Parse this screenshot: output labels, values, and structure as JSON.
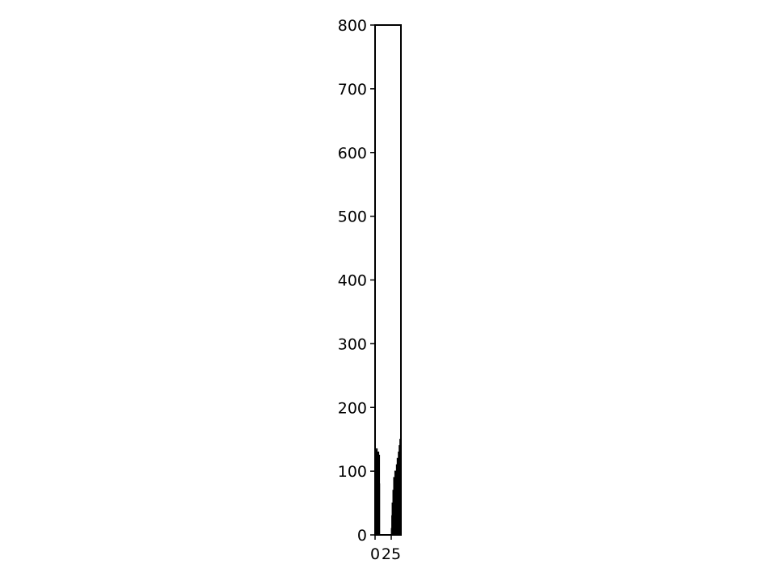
{
  "chart_data": {
    "type": "bar",
    "title": "",
    "xlabel": "",
    "ylabel": "",
    "ylim": [
      0,
      800
    ],
    "xlim": [
      0,
      40
    ],
    "yticks": [
      0,
      100,
      200,
      300,
      400,
      500,
      600,
      700,
      800
    ],
    "xtick_labels": [
      "0",
      "25"
    ],
    "grid": false,
    "legend": "none",
    "bar_color": "#add8e6",
    "edge_color": "#000000",
    "bars": [
      {
        "x": 0.5,
        "y": 20
      },
      {
        "x": 0.7,
        "y": 40
      },
      {
        "x": 0.9,
        "y": 60
      },
      {
        "x": 1.1,
        "y": 15
      },
      {
        "x": 1.3,
        "y": 80
      },
      {
        "x": 1.5,
        "y": 35
      },
      {
        "x": 1.7,
        "y": 100
      },
      {
        "x": 1.9,
        "y": 55
      },
      {
        "x": 2.1,
        "y": 120
      },
      {
        "x": 2.3,
        "y": 30
      },
      {
        "x": 2.5,
        "y": 135
      },
      {
        "x": 2.7,
        "y": 75
      },
      {
        "x": 2.9,
        "y": 110
      },
      {
        "x": 3.1,
        "y": 45
      },
      {
        "x": 3.3,
        "y": 90
      },
      {
        "x": 3.5,
        "y": 65
      },
      {
        "x": 3.7,
        "y": 25
      },
      {
        "x": 3.9,
        "y": 115
      },
      {
        "x": 4.1,
        "y": 50
      },
      {
        "x": 4.3,
        "y": 85
      },
      {
        "x": 4.5,
        "y": 10
      },
      {
        "x": 4.7,
        "y": 70
      },
      {
        "x": 4.9,
        "y": 130
      },
      {
        "x": 5.1,
        "y": 40
      },
      {
        "x": 5.3,
        "y": 95
      },
      {
        "x": 5.5,
        "y": 60
      },
      {
        "x": 5.7,
        "y": 105
      },
      {
        "x": 5.9,
        "y": 30
      },
      {
        "x": 6.1,
        "y": 125
      },
      {
        "x": 6.3,
        "y": 80
      },
      {
        "x": 26.0,
        "y": 10
      },
      {
        "x": 26.6,
        "y": 30
      },
      {
        "x": 27.2,
        "y": 50
      },
      {
        "x": 27.8,
        "y": 20
      },
      {
        "x": 28.4,
        "y": 70
      },
      {
        "x": 29.0,
        "y": 40
      },
      {
        "x": 29.6,
        "y": 90
      },
      {
        "x": 30.2,
        "y": 15
      },
      {
        "x": 30.8,
        "y": 60
      },
      {
        "x": 31.4,
        "y": 100
      },
      {
        "x": 32.0,
        "y": 35
      },
      {
        "x": 32.6,
        "y": 80
      },
      {
        "x": 33.2,
        "y": 25
      },
      {
        "x": 33.8,
        "y": 110
      },
      {
        "x": 34.4,
        "y": 55
      },
      {
        "x": 35.0,
        "y": 120
      },
      {
        "x": 35.6,
        "y": 45
      },
      {
        "x": 36.2,
        "y": 95
      },
      {
        "x": 36.8,
        "y": 130
      },
      {
        "x": 37.4,
        "y": 65
      },
      {
        "x": 38.0,
        "y": 140
      },
      {
        "x": 38.6,
        "y": 85
      },
      {
        "x": 39.2,
        "y": 150
      },
      {
        "x": 39.6,
        "y": 75
      }
    ]
  }
}
